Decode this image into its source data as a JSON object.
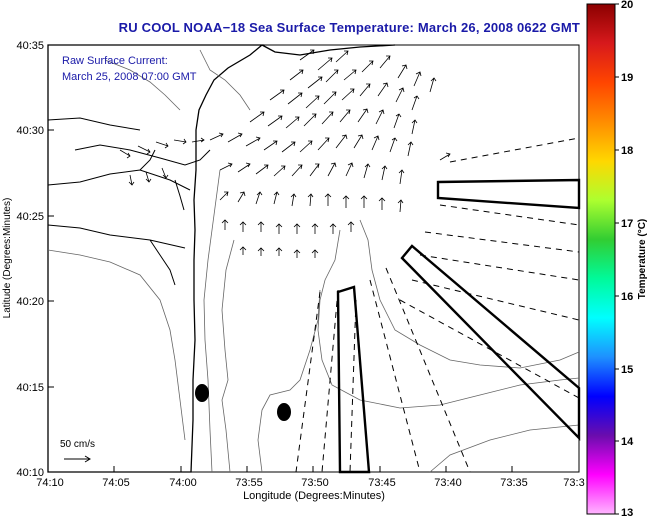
{
  "title": "RU COOL  NOAA−18  Sea Surface Temperature:  March 26, 2008 0622 GMT",
  "overlay": {
    "line1": "Raw Surface Current:",
    "line2": "March 25, 2008 07:00 GMT"
  },
  "scale": {
    "label": "50 cm/s"
  },
  "axes": {
    "xlabel": "Longitude (Degrees:Minutes)",
    "ylabel": "Latitude (Degrees:Minutes)",
    "xticks": [
      "74:10",
      "74:05",
      "74:00",
      "73:55",
      "73:50",
      "73:45",
      "73:40",
      "73:35",
      "73:3"
    ],
    "yticks": [
      "40:35",
      "40:30",
      "40:25",
      "40:20",
      "40:15",
      "40:10"
    ]
  },
  "colorbar": {
    "label": "Temperature (°C)",
    "ticks": [
      "20",
      "19",
      "18",
      "17",
      "16",
      "15",
      "14",
      "13"
    ],
    "colors": [
      "#8b0000",
      "#d7191c",
      "#ff4500",
      "#ff8c00",
      "#ffd700",
      "#adff2f",
      "#32cd32",
      "#00fa9a",
      "#00ffff",
      "#1e90ff",
      "#0000ff",
      "#6a0dad",
      "#ff00ff",
      "#ffb6ff"
    ]
  },
  "chart_data": {
    "type": "map",
    "title": "RU COOL  NOAA−18  Sea Surface Temperature:  March 26, 2008 0622 GMT",
    "xlabel": "Longitude (Degrees:Minutes)",
    "ylabel": "Latitude (Degrees:Minutes)",
    "xlim": [
      "74:10",
      "73:30"
    ],
    "ylim": [
      "40:10",
      "40:35"
    ],
    "colorbar_range": [
      13,
      20
    ],
    "colorbar_label": "Temperature (°C)",
    "vector_scale": "50 cm/s"
  }
}
